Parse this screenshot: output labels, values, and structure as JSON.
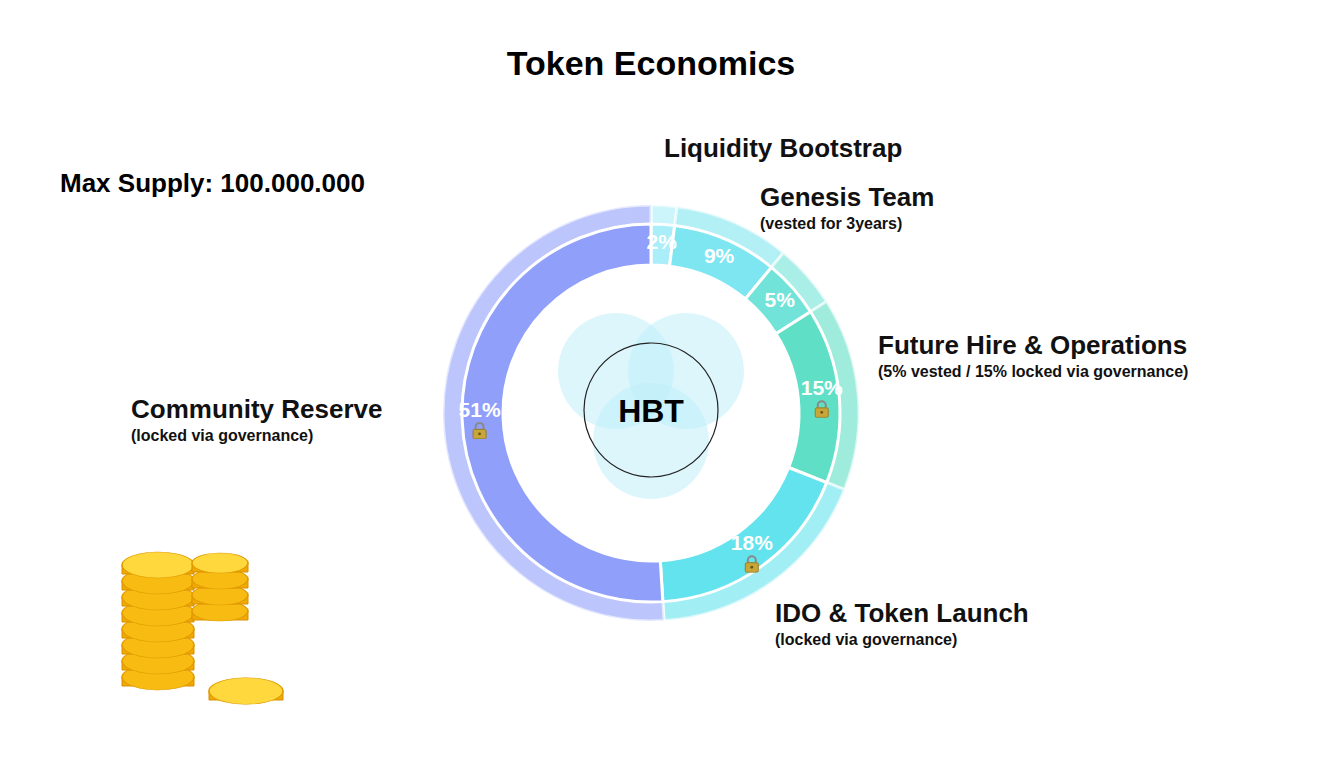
{
  "chart_data": {
    "type": "pie",
    "title": "Token Economics",
    "annotations": [
      "Max Supply: 100.000.000"
    ],
    "center_label": "HBT",
    "categories": [
      "Liquidity Bootstrap",
      "Genesis Team",
      null,
      "Future Hire & Operations",
      "IDO & Token Launch",
      "Community Reserve"
    ],
    "notes": [
      null,
      "(vested for 3years)",
      null,
      "(5% vested / 15% locked via governance)",
      "(locked via governance)",
      "(locked via governance)"
    ],
    "values": [
      2,
      9,
      5,
      15,
      18,
      51
    ],
    "value_labels": [
      "2%",
      "9%",
      "5%",
      "15%",
      "18%",
      "51%"
    ],
    "colors": [
      "#a9eef8",
      "#7ee6f0",
      "#72e3d9",
      "#5fe0c6",
      "#62e3ee",
      "#8f9ffa"
    ],
    "data_labels": true
  }
}
